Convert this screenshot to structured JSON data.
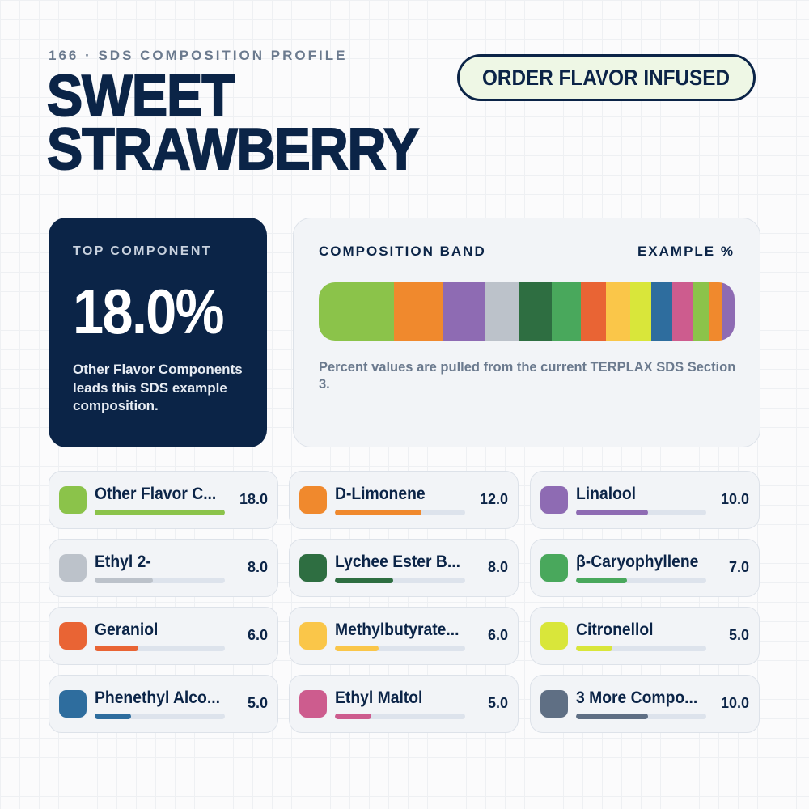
{
  "header": {
    "eyebrow": "166 · SDS COMPOSITION PROFILE",
    "title_line1": "SWEET",
    "title_line2": "STRAWBERRY",
    "order_button": "ORDER FLAVOR INFUSED"
  },
  "top_component": {
    "label": "TOP COMPONENT",
    "value": "18.0%",
    "description": "Other Flavor Components leads this SDS example composition."
  },
  "band": {
    "title": "COMPOSITION BAND",
    "example_label": "EXAMPLE %",
    "note": "Percent values are pulled from the current TERPLAX SDS Section 3."
  },
  "colors": {
    "navy": "#0b2447",
    "accent_green": "#eef7e5"
  },
  "chart_data": {
    "type": "bar",
    "title": "",
    "series": [
      {
        "name": "Other Flavor C...",
        "value": 18.0,
        "label": "18.0",
        "color": "#8bc34a"
      },
      {
        "name": "D-Limonene",
        "value": 12.0,
        "label": "12.0",
        "color": "#f0892d"
      },
      {
        "name": "Linalool",
        "value": 10.0,
        "label": "10.0",
        "color": "#8e6bb3"
      },
      {
        "name": "Ethyl 2-",
        "value": 8.0,
        "label": "8.0",
        "color": "#bcc2ca"
      },
      {
        "name": "Lychee Ester B...",
        "value": 8.0,
        "label": "8.0",
        "color": "#2e6e41"
      },
      {
        "name": "β-Caryophyllene",
        "value": 7.0,
        "label": "7.0",
        "color": "#49a85c"
      },
      {
        "name": "Geraniol",
        "value": 6.0,
        "label": "6.0",
        "color": "#e96434"
      },
      {
        "name": "Methylbutyrate...",
        "value": 6.0,
        "label": "6.0",
        "color": "#fac649"
      },
      {
        "name": "Citronellol",
        "value": 5.0,
        "label": "5.0",
        "color": "#d9e63a"
      },
      {
        "name": "Phenethyl Alco...",
        "value": 5.0,
        "label": "5.0",
        "color": "#2e6d9e"
      },
      {
        "name": "Ethyl Maltol",
        "value": 5.0,
        "label": "5.0",
        "color": "#cd5c8e"
      },
      {
        "name": "3 More Compo...",
        "value": 10.0,
        "label": "10.0",
        "color": "#5f6f84"
      }
    ],
    "band_segments": [
      {
        "value": 18.0,
        "color": "#8bc34a"
      },
      {
        "value": 12.0,
        "color": "#f0892d"
      },
      {
        "value": 10.0,
        "color": "#8e6bb3"
      },
      {
        "value": 8.0,
        "color": "#bcc2ca"
      },
      {
        "value": 8.0,
        "color": "#2e6e41"
      },
      {
        "value": 7.0,
        "color": "#49a85c"
      },
      {
        "value": 6.0,
        "color": "#e96434"
      },
      {
        "value": 6.0,
        "color": "#fac649"
      },
      {
        "value": 5.0,
        "color": "#d9e63a"
      },
      {
        "value": 5.0,
        "color": "#2e6d9e"
      },
      {
        "value": 5.0,
        "color": "#cd5c8e"
      },
      {
        "value": 4.0,
        "color": "#8bc34a"
      },
      {
        "value": 3.0,
        "color": "#f0892d"
      },
      {
        "value": 3.0,
        "color": "#8e6bb3"
      }
    ],
    "max_value": 18.0
  }
}
